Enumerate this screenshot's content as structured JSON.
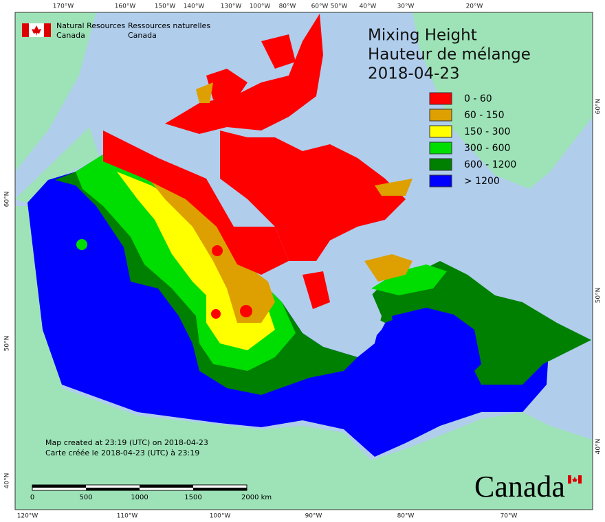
{
  "agency": {
    "en": [
      "Natural Resources",
      "Canada"
    ],
    "fr": [
      "Ressources naturelles",
      "Canada"
    ]
  },
  "title": [
    "Mixing Height",
    "Hauteur de mélange",
    "2018-04-23"
  ],
  "legend": [
    {
      "label": "0 - 60",
      "color": "#ff0000"
    },
    {
      "label": "60 - 150",
      "color": "#dda000"
    },
    {
      "label": "150 - 300",
      "color": "#ffff00"
    },
    {
      "label": "300 - 600",
      "color": "#00dd00"
    },
    {
      "label": "600 - 1200",
      "color": "#008000"
    },
    {
      "label": "> 1200",
      "color": "#0000ff"
    }
  ],
  "graticule": {
    "top": [
      "170°W",
      "160°W",
      "150°W",
      "140°W",
      "130°W",
      "100°W",
      "80°W",
      "60°W",
      "50°W",
      "40°W",
      "30°W",
      "20°W"
    ],
    "bottom": [
      "120°W",
      "110°W",
      "100°W",
      "90°W",
      "80°W",
      "70°W"
    ],
    "left": [
      "60°N",
      "50°N",
      "40°N"
    ],
    "right": [
      "60°N",
      "50°N",
      "40°N"
    ]
  },
  "notes": [
    "Map created at 23:19 (UTC) on 2018-04-23",
    "Carte créée le 2018-04-23 (UTC) à 23:19"
  ],
  "scale_bar": [
    "0",
    "500",
    "1000",
    "1500",
    "2000  km"
  ],
  "wordmark": "Canada"
}
